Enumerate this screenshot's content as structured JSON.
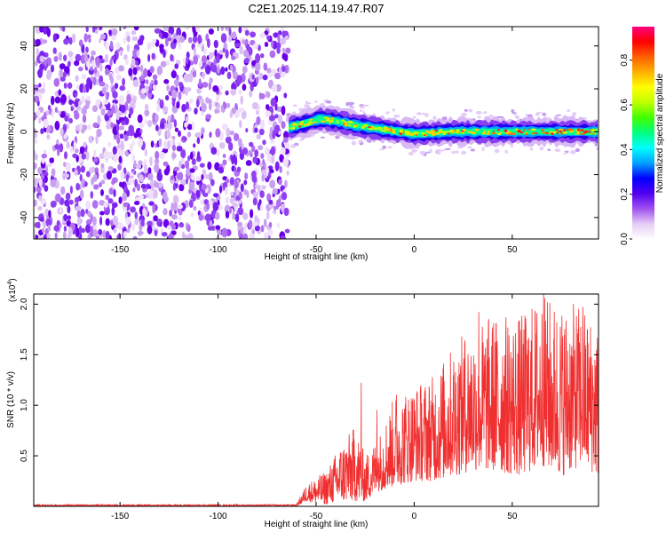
{
  "title": "C2E1.2025.114.19.47.R07",
  "chart_data": [
    {
      "type": "heatmap",
      "title": "C2E1.2025.114.19.47.R07",
      "xlabel": "Height of straight line (km)",
      "ylabel": "Frequency (Hz)",
      "xlim": [
        -194,
        94
      ],
      "ylim": [
        -50,
        49
      ],
      "xticks": [
        "-150",
        "-100",
        "-50",
        "0",
        "50"
      ],
      "xtick_values": [
        -150,
        -100,
        -50,
        0,
        50
      ],
      "yticks": [
        "-40",
        "-20",
        "0",
        "20",
        "40"
      ],
      "ytick_values": [
        -40,
        -20,
        0,
        20,
        40
      ],
      "noise_region_x": [
        -194,
        -64
      ],
      "signal_region_x": [
        -64,
        94
      ],
      "signal_center_track": [
        {
          "x": -64,
          "y": 2
        },
        {
          "x": -55,
          "y": 4
        },
        {
          "x": -48,
          "y": 6
        },
        {
          "x": -40,
          "y": 5
        },
        {
          "x": -30,
          "y": 3
        },
        {
          "x": -15,
          "y": 1
        },
        {
          "x": 0,
          "y": -1
        },
        {
          "x": 20,
          "y": 0
        },
        {
          "x": 50,
          "y": 0
        },
        {
          "x": 94,
          "y": 0
        }
      ],
      "colorbar": {
        "label": "Normalized spectral amplitude",
        "range": [
          0,
          0.95
        ],
        "ticks": [
          "0.0",
          "0.2",
          "0.4",
          "0.6",
          "0.8"
        ],
        "tick_values": [
          0.0,
          0.2,
          0.4,
          0.6,
          0.8
        ],
        "colors": [
          "#ffffff",
          "#e6ccf5",
          "#a050f0",
          "#5000f0",
          "#0000ff",
          "#00a0ff",
          "#00ffff",
          "#00ff80",
          "#40ff00",
          "#c0ff00",
          "#ffff00",
          "#ffb000",
          "#ff6000",
          "#ff0000",
          "#ff0080"
        ]
      }
    },
    {
      "type": "line",
      "xlabel": "Height of straight line (km)",
      "ylabel": "SNR (10 * v/v)",
      "y_multiplier": "(x10⁴)",
      "y_multiplier_base": "(x10",
      "y_multiplier_exp": "4",
      "y_multiplier_close": ")",
      "xlim": [
        -194,
        94
      ],
      "ylim": [
        0,
        2.1
      ],
      "xticks": [
        "-150",
        "-100",
        "-50",
        "0",
        "50"
      ],
      "xtick_values": [
        -150,
        -100,
        -50,
        0,
        50
      ],
      "yticks": [
        "0.5",
        "1.0",
        "1.5",
        "2.0"
      ],
      "ytick_values": [
        0.5,
        1.0,
        1.5,
        2.0
      ],
      "color": "#f03030",
      "envelope": [
        {
          "x": -194,
          "lo": 0.0,
          "hi": 0.02
        },
        {
          "x": -60,
          "lo": 0.0,
          "hi": 0.02
        },
        {
          "x": -55,
          "lo": 0.05,
          "hi": 0.22
        },
        {
          "x": -45,
          "lo": 0.02,
          "hi": 0.35
        },
        {
          "x": -38,
          "lo": 0.05,
          "hi": 0.6
        },
        {
          "x": -30,
          "lo": 0.05,
          "hi": 0.8
        },
        {
          "x": -25,
          "lo": 0.05,
          "hi": 0.5
        },
        {
          "x": -18,
          "lo": 0.15,
          "hi": 0.7
        },
        {
          "x": -10,
          "lo": 0.2,
          "hi": 1.1
        },
        {
          "x": 0,
          "lo": 0.25,
          "hi": 1.2
        },
        {
          "x": 10,
          "lo": 0.25,
          "hi": 1.3
        },
        {
          "x": 20,
          "lo": 0.3,
          "hi": 1.6
        },
        {
          "x": 30,
          "lo": 0.35,
          "hi": 1.8
        },
        {
          "x": 40,
          "lo": 0.35,
          "hi": 1.9
        },
        {
          "x": 55,
          "lo": 0.3,
          "hi": 1.9
        },
        {
          "x": 65,
          "lo": 0.4,
          "hi": 2.1
        },
        {
          "x": 75,
          "lo": 0.3,
          "hi": 2.0
        },
        {
          "x": 85,
          "lo": 0.4,
          "hi": 2.0
        },
        {
          "x": 94,
          "lo": 0.3,
          "hi": 1.8
        }
      ],
      "peaks": [
        {
          "x": -27,
          "y": 1.22
        },
        {
          "x": -19,
          "y": 0.95
        },
        {
          "x": -9,
          "y": 1.1
        },
        {
          "x": 26,
          "y": 1.6
        },
        {
          "x": 33,
          "y": 1.92
        },
        {
          "x": 66,
          "y": 2.1
        },
        {
          "x": 86,
          "y": 1.97
        }
      ]
    }
  ]
}
